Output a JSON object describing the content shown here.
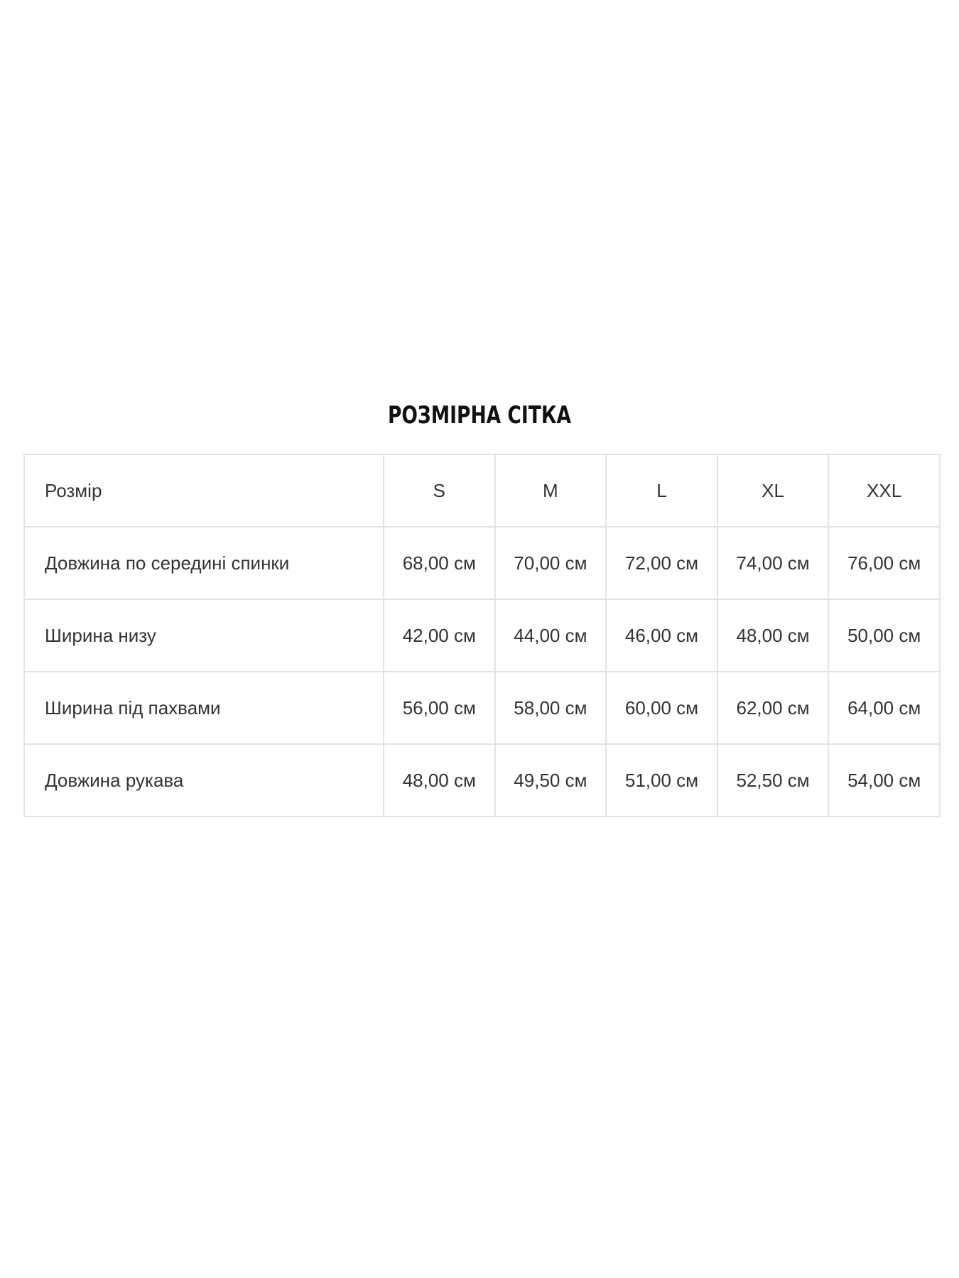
{
  "title": "РОЗМІРНА СІТКА",
  "table": {
    "header": [
      "Розмір",
      "S",
      "M",
      "L",
      "XL",
      "XXL"
    ],
    "rows": [
      [
        "Довжина по середині спинки",
        "68,00 см",
        "70,00 см",
        "72,00 см",
        "74,00 см",
        "76,00 см"
      ],
      [
        "Ширина низу",
        "42,00 см",
        "44,00 см",
        "46,00 см",
        "48,00 см",
        "50,00 см"
      ],
      [
        "Ширина під пахвами",
        "56,00 см",
        "58,00 см",
        "60,00 см",
        "62,00 см",
        "64,00 см"
      ],
      [
        "Довжина рукава",
        "48,00 см",
        "49,50 см",
        "51,00 см",
        "52,50 см",
        "54,00 см"
      ]
    ]
  }
}
